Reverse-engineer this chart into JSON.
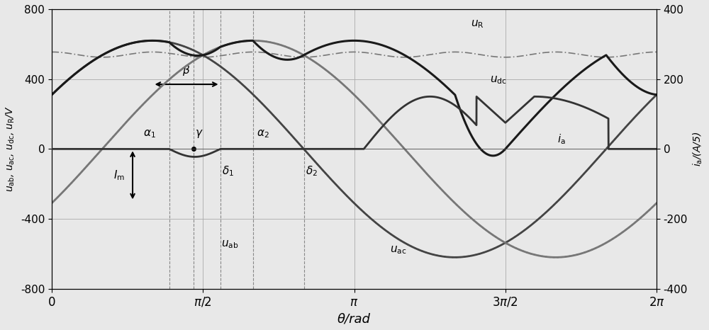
{
  "xlabel": "θ/rad",
  "ylim_left": [
    -800,
    800
  ],
  "ylim_right": [
    -400,
    400
  ],
  "xlim": [
    0,
    6.283185307
  ],
  "Vm": 620,
  "Vdc_level": 540,
  "Im": 150,
  "alpha1": 1.22,
  "alpha2": 2.09,
  "gamma": 1.47,
  "delta1": 1.75,
  "delta2": 2.62,
  "beta_start": 1.05,
  "beta_end": 1.75,
  "background": "#e8e8e8"
}
